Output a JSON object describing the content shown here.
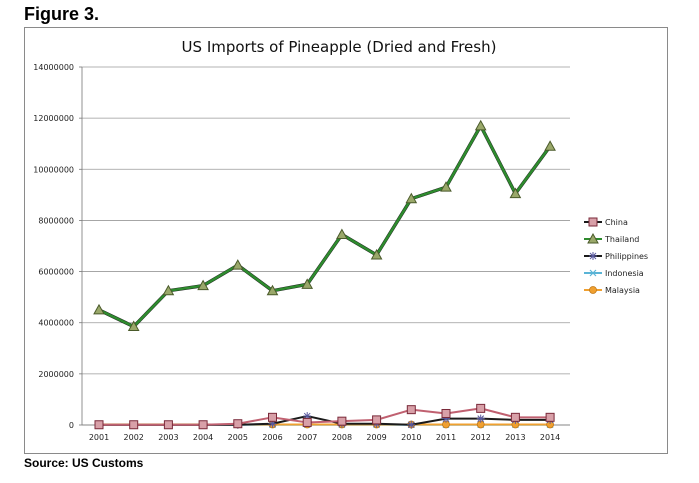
{
  "figure_label": "Figure 3.",
  "source_text": "Source:  US Customs",
  "chart_data": {
    "type": "line",
    "title": "US Imports of Pineapple (Dried and Fresh)",
    "xlabel": "",
    "ylabel": "",
    "categories": [
      "2001",
      "2002",
      "2003",
      "2004",
      "2005",
      "2006",
      "2007",
      "2008",
      "2009",
      "2010",
      "2011",
      "2012",
      "2013",
      "2014"
    ],
    "ylim": [
      0,
      14000000
    ],
    "yticks": [
      0,
      2000000,
      4000000,
      6000000,
      8000000,
      10000000,
      12000000,
      14000000
    ],
    "ytick_labels": [
      "0",
      "2000000",
      "4000000",
      "6000000",
      "8000000",
      "10000000",
      "12000000",
      "14000000"
    ],
    "grid": "horizontal",
    "legend_position": "right",
    "series": [
      {
        "name": "China",
        "color": "#c06070",
        "marker": "square",
        "values": [
          10000,
          10000,
          10000,
          10000,
          50000,
          300000,
          100000,
          150000,
          200000,
          600000,
          450000,
          650000,
          300000,
          300000
        ]
      },
      {
        "name": "Thailand",
        "color": "#2e8b2e",
        "marker": "triangle",
        "values": [
          4500000,
          3850000,
          5250000,
          5450000,
          6250000,
          5250000,
          5500000,
          7450000,
          6650000,
          8850000,
          9300000,
          11700000,
          9050000,
          10900000
        ]
      },
      {
        "name": "Philippines",
        "color": "#1a1a1a",
        "marker": "star",
        "values": [
          5000,
          5000,
          5000,
          5000,
          10000,
          50000,
          350000,
          50000,
          50000,
          10000,
          250000,
          250000,
          200000,
          200000
        ]
      },
      {
        "name": "Indonesia",
        "color": "#5ab4d6",
        "marker": "x",
        "values": [
          10000,
          10000,
          10000,
          10000,
          10000,
          10000,
          10000,
          10000,
          10000,
          10000,
          10000,
          10000,
          10000,
          10000
        ]
      },
      {
        "name": "Malaysia",
        "color": "#f0a030",
        "marker": "circle",
        "values": [
          20000,
          20000,
          20000,
          20000,
          20000,
          20000,
          20000,
          20000,
          20000,
          20000,
          20000,
          20000,
          20000,
          20000
        ]
      }
    ]
  }
}
